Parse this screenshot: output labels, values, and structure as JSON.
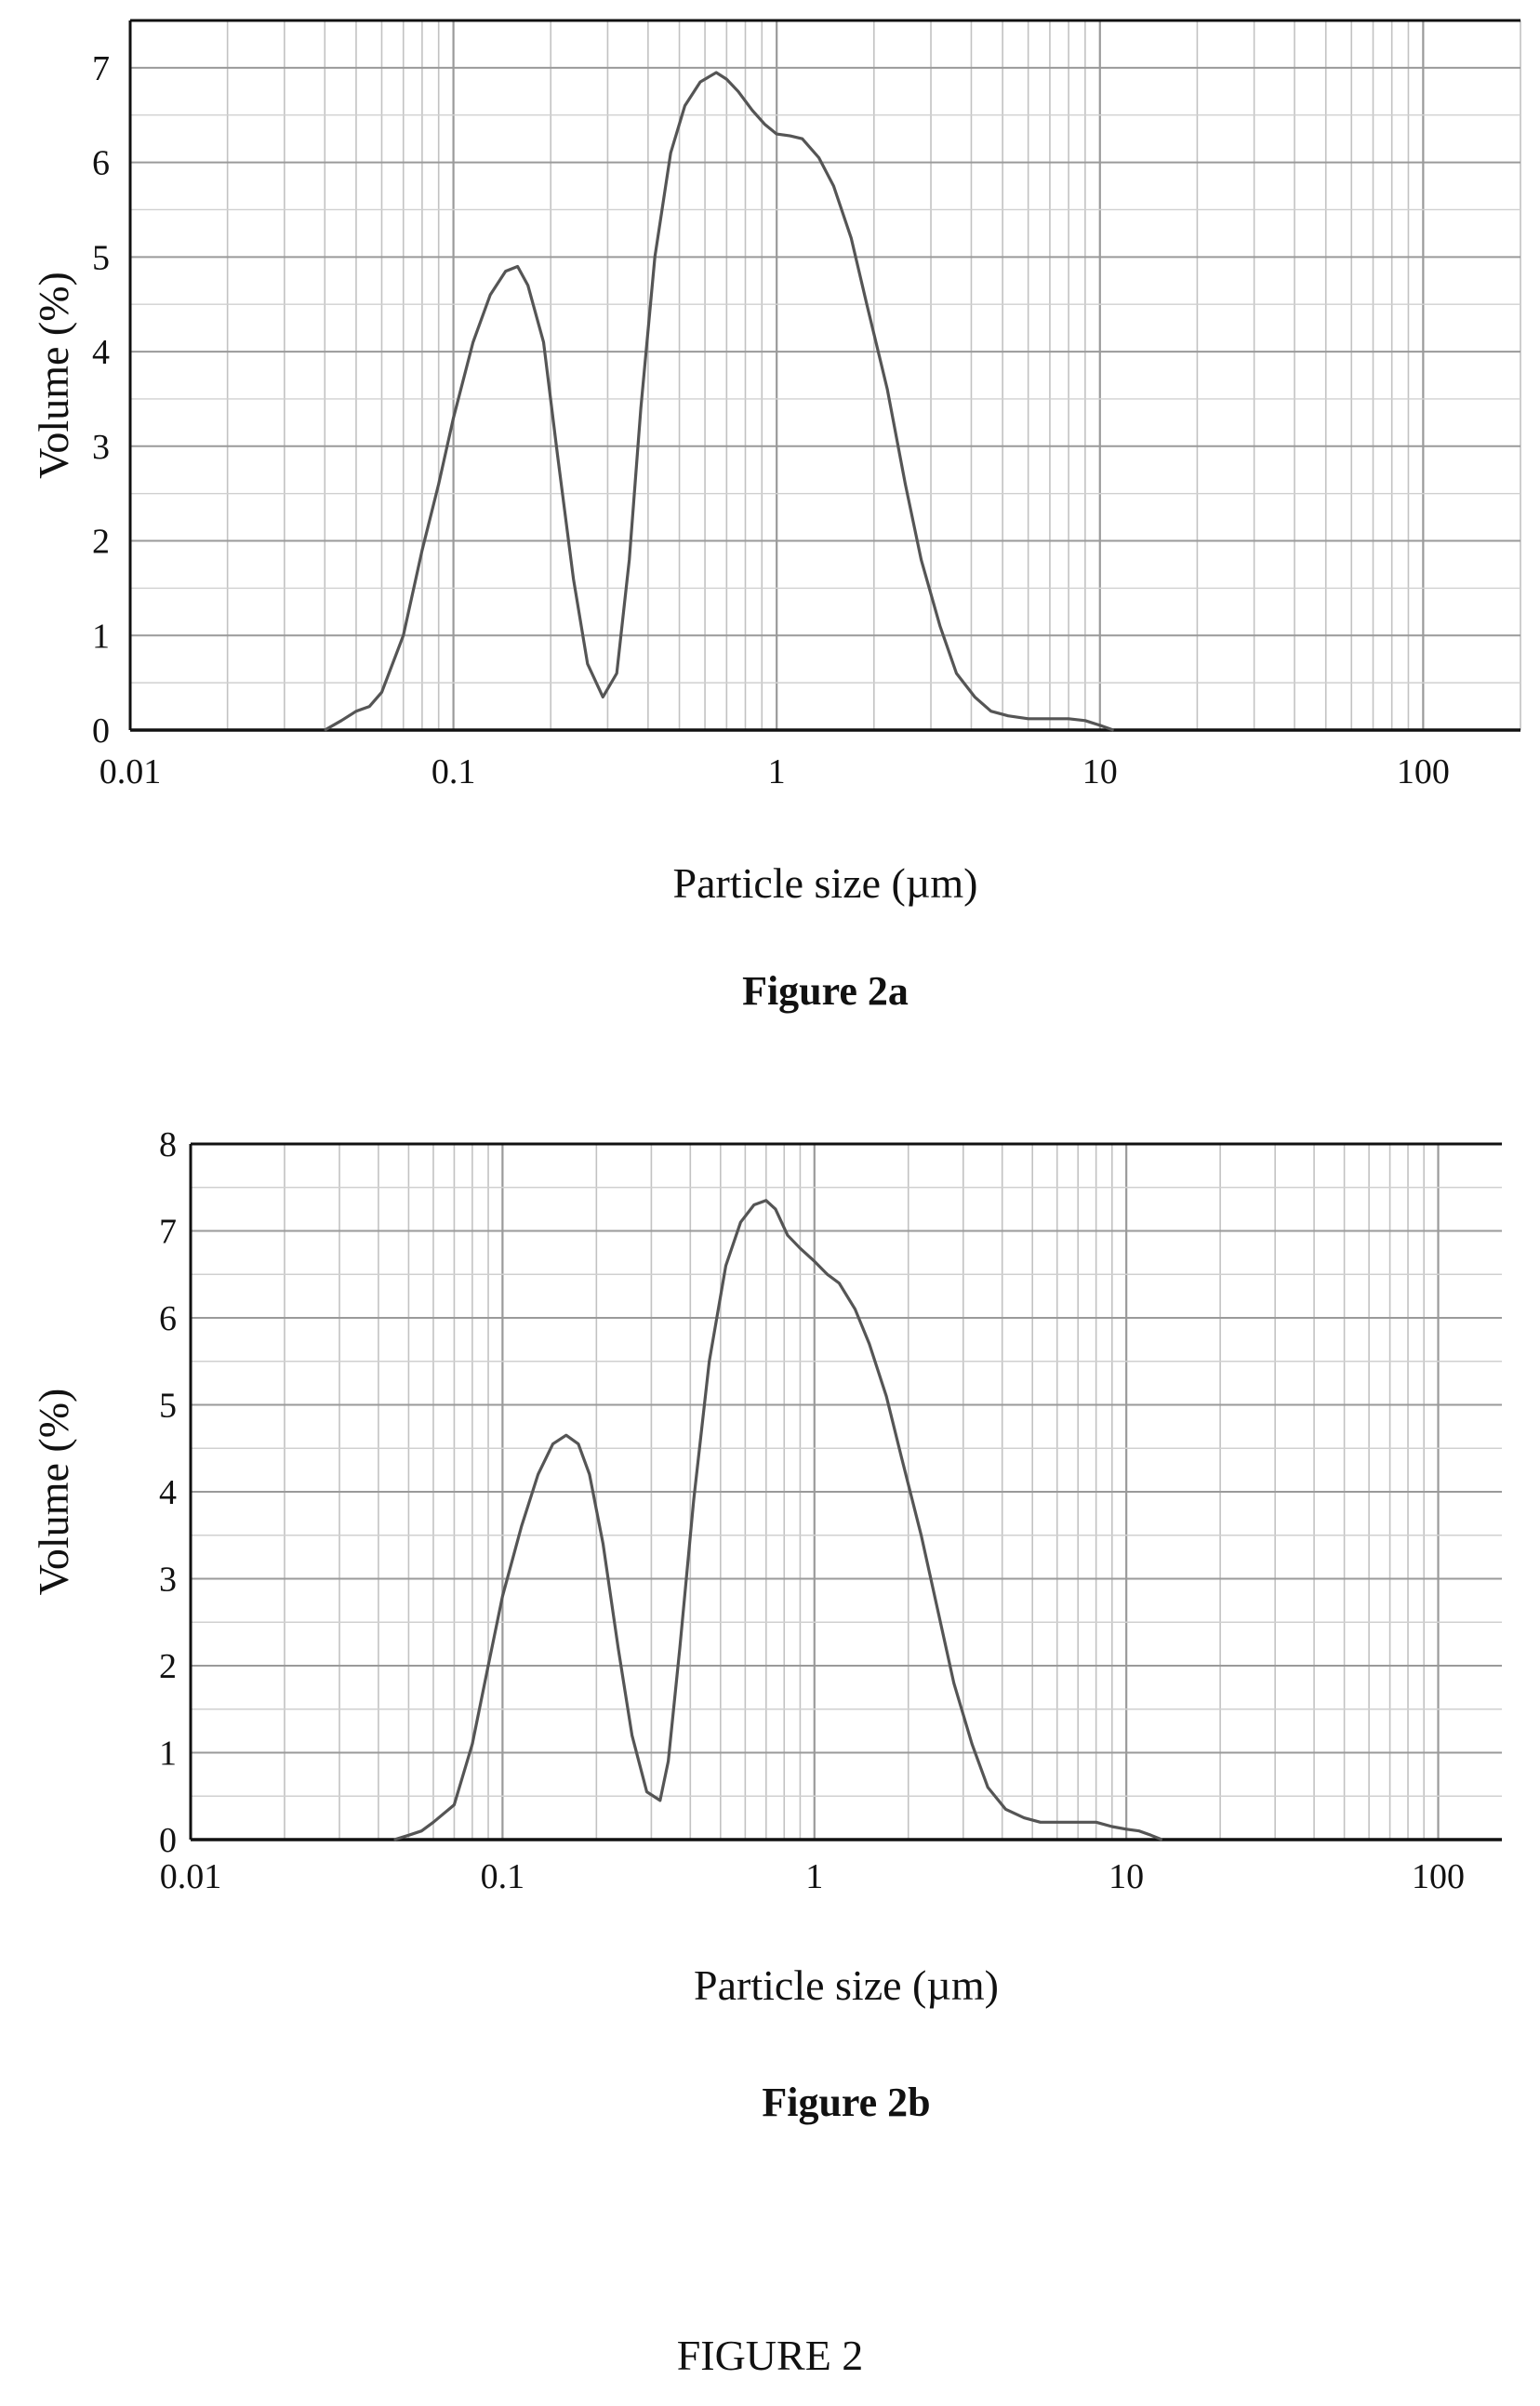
{
  "figure_title": "FIGURE 2",
  "chart_data": [
    {
      "type": "line",
      "caption": "Figure 2a",
      "xlabel": "Particle size (µm)",
      "ylabel": "Volume (%)",
      "x_scale": "log",
      "xlim": [
        0.01,
        200
      ],
      "ylim": [
        0,
        7.5
      ],
      "x_ticks": [
        0.01,
        0.1,
        1,
        10,
        100
      ],
      "x_tick_labels": [
        "0.01",
        "0.1",
        "1",
        "10",
        "100"
      ],
      "y_ticks": [
        0,
        1,
        2,
        3,
        4,
        5,
        6,
        7
      ],
      "y_tick_labels": [
        "0",
        "1",
        "2",
        "3",
        "4",
        "5",
        "6",
        "7"
      ],
      "grid": true,
      "series": [
        {
          "x": [
            0.04,
            0.045,
            0.05,
            0.055,
            0.06,
            0.07,
            0.08,
            0.09,
            0.1,
            0.115,
            0.13,
            0.145,
            0.158,
            0.17,
            0.19,
            0.21,
            0.235,
            0.26,
            0.29,
            0.32,
            0.35,
            0.38,
            0.42,
            0.47,
            0.52,
            0.58,
            0.65,
            0.7,
            0.76,
            0.84,
            0.92,
            1.0,
            1.1,
            1.2,
            1.35,
            1.5,
            1.7,
            1.9,
            2.2,
            2.5,
            2.8,
            3.2,
            3.6,
            4.1,
            4.6,
            5.2,
            6.0,
            7.0,
            8.0,
            9.0,
            10.0,
            11.0
          ],
          "y": [
            0.0,
            0.1,
            0.2,
            0.25,
            0.4,
            1.0,
            1.9,
            2.6,
            3.3,
            4.1,
            4.6,
            4.85,
            4.9,
            4.7,
            4.1,
            2.9,
            1.6,
            0.7,
            0.35,
            0.6,
            1.8,
            3.4,
            5.0,
            6.1,
            6.6,
            6.85,
            6.95,
            6.88,
            6.75,
            6.55,
            6.4,
            6.3,
            6.28,
            6.25,
            6.05,
            5.75,
            5.2,
            4.5,
            3.6,
            2.6,
            1.8,
            1.1,
            0.6,
            0.35,
            0.2,
            0.15,
            0.12,
            0.12,
            0.12,
            0.1,
            0.05,
            0.0
          ]
        }
      ]
    },
    {
      "type": "line",
      "caption": "Figure 2b",
      "xlabel": "Particle size (µm)",
      "ylabel": "Volume (%)",
      "x_scale": "log",
      "xlim": [
        0.01,
        160
      ],
      "ylim": [
        0,
        8
      ],
      "x_ticks": [
        0.01,
        0.1,
        1,
        10,
        100
      ],
      "x_tick_labels": [
        "0.01",
        "0.1",
        "1",
        "10",
        "100"
      ],
      "y_ticks": [
        0,
        1,
        2,
        3,
        4,
        5,
        6,
        7,
        8
      ],
      "y_tick_labels": [
        "0",
        "1",
        "2",
        "3",
        "4",
        "5",
        "6",
        "7",
        "8"
      ],
      "grid": true,
      "series": [
        {
          "x": [
            0.045,
            0.05,
            0.055,
            0.06,
            0.07,
            0.08,
            0.09,
            0.1,
            0.115,
            0.13,
            0.145,
            0.16,
            0.175,
            0.19,
            0.21,
            0.235,
            0.26,
            0.29,
            0.32,
            0.34,
            0.37,
            0.41,
            0.46,
            0.52,
            0.58,
            0.64,
            0.7,
            0.75,
            0.82,
            0.9,
            1.0,
            1.1,
            1.2,
            1.35,
            1.5,
            1.7,
            1.9,
            2.2,
            2.5,
            2.8,
            3.2,
            3.6,
            4.1,
            4.7,
            5.3,
            6.0,
            7.0,
            8.0,
            9.0,
            10.0,
            11.0,
            12.0,
            13.0
          ],
          "y": [
            0.0,
            0.05,
            0.1,
            0.2,
            0.4,
            1.1,
            2.0,
            2.8,
            3.6,
            4.2,
            4.55,
            4.65,
            4.55,
            4.2,
            3.4,
            2.2,
            1.2,
            0.55,
            0.45,
            0.9,
            2.2,
            3.9,
            5.5,
            6.6,
            7.1,
            7.3,
            7.35,
            7.25,
            6.95,
            6.8,
            6.65,
            6.5,
            6.4,
            6.1,
            5.7,
            5.1,
            4.4,
            3.5,
            2.6,
            1.8,
            1.1,
            0.6,
            0.35,
            0.25,
            0.2,
            0.2,
            0.2,
            0.2,
            0.15,
            0.12,
            0.1,
            0.05,
            0.0
          ]
        }
      ]
    }
  ]
}
